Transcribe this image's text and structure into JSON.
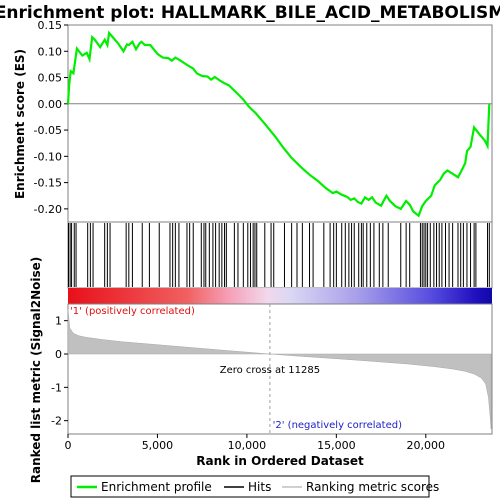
{
  "chart_data": {
    "type": "line",
    "title": "Enrichment plot: HALLMARK_BILE_ACID_METABOLISM",
    "xlabel": "Rank in Ordered Dataset",
    "ylabel_top": "Enrichment score (ES)",
    "ylabel_bottom": "Ranked list metric (Signal2Noise)",
    "xlim": [
      0,
      23700
    ],
    "x_ticks": [
      0,
      5000,
      10000,
      15000,
      20000
    ],
    "x_tick_labels": [
      "0",
      "5,000",
      "10,000",
      "15,000",
      "20,000"
    ],
    "es_ylim": [
      -0.225,
      0.15
    ],
    "es_ticks": [
      0.15,
      0.1,
      0.05,
      0.0,
      -0.05,
      -0.1,
      -0.15,
      -0.2
    ],
    "es_tick_labels": [
      "0.15",
      "0.10",
      "0.05",
      "0.00",
      "-0.05",
      "-0.10",
      "-0.15",
      "-0.20"
    ],
    "metric_ylim": [
      -2.4,
      1.5
    ],
    "metric_ticks": [
      1,
      0,
      -1,
      -2
    ],
    "metric_tick_labels": [
      "1",
      "0",
      "-1",
      "-2"
    ],
    "series": [
      {
        "name": "Enrichment profile",
        "color": "#00ee00",
        "x": [
          0,
          60,
          150,
          300,
          500,
          800,
          1050,
          1200,
          1350,
          1500,
          1800,
          2050,
          2200,
          2300,
          2500,
          2800,
          3100,
          3300,
          3400,
          3600,
          3800,
          4000,
          4100,
          4300,
          4600,
          5000,
          5300,
          5600,
          5800,
          6000,
          6300,
          6700,
          7000,
          7200,
          7500,
          7800,
          8000,
          8200,
          8500,
          8800,
          9000,
          9300,
          9600,
          9800,
          10100,
          10500,
          11000,
          11285,
          11600,
          12000,
          12500,
          13000,
          13500,
          14000,
          14400,
          14600,
          14800,
          15000,
          15300,
          15600,
          15800,
          16000,
          16200,
          16400,
          16600,
          16800,
          17000,
          17200,
          17500,
          17800,
          18000,
          18300,
          18600,
          18900,
          19100,
          19300,
          19600,
          19800,
          20000,
          20300,
          20500,
          20800,
          21000,
          21200,
          21500,
          21800,
          22000,
          22200,
          22300,
          22500,
          22700,
          23000,
          23300,
          23450,
          23550
        ],
        "y": [
          0.0,
          0.035,
          0.062,
          0.058,
          0.105,
          0.092,
          0.097,
          0.085,
          0.127,
          0.122,
          0.108,
          0.122,
          0.112,
          0.135,
          0.127,
          0.115,
          0.1,
          0.113,
          0.112,
          0.118,
          0.104,
          0.115,
          0.118,
          0.112,
          0.112,
          0.095,
          0.088,
          0.087,
          0.082,
          0.088,
          0.082,
          0.073,
          0.067,
          0.058,
          0.053,
          0.052,
          0.046,
          0.051,
          0.044,
          0.038,
          0.035,
          0.025,
          0.015,
          0.008,
          -0.005,
          -0.018,
          -0.038,
          -0.05,
          -0.063,
          -0.082,
          -0.103,
          -0.12,
          -0.135,
          -0.148,
          -0.16,
          -0.165,
          -0.17,
          -0.167,
          -0.173,
          -0.177,
          -0.183,
          -0.18,
          -0.187,
          -0.19,
          -0.178,
          -0.183,
          -0.178,
          -0.188,
          -0.194,
          -0.175,
          -0.185,
          -0.195,
          -0.2,
          -0.185,
          -0.192,
          -0.205,
          -0.213,
          -0.195,
          -0.185,
          -0.175,
          -0.155,
          -0.145,
          -0.133,
          -0.127,
          -0.133,
          -0.14,
          -0.127,
          -0.113,
          -0.09,
          -0.082,
          -0.045,
          -0.058,
          -0.07,
          -0.08,
          0.0
        ]
      }
    ],
    "hits_label": "Hits",
    "ranking_label": "Ranking metric scores",
    "hits": [
      30,
      120,
      200,
      350,
      450,
      1100,
      1250,
      1400,
      2050,
      2200,
      2350,
      3250,
      3400,
      3600,
      4150,
      4550,
      5100,
      5700,
      5850,
      6000,
      6200,
      6650,
      6800,
      7000,
      7450,
      7600,
      7700,
      7900,
      8100,
      8250,
      8450,
      8600,
      8750,
      8850,
      9300,
      9500,
      9800,
      10050,
      10200,
      10350,
      10450,
      10550,
      11000,
      11350,
      11500,
      12100,
      12500,
      12800,
      13100,
      13500,
      13700,
      14300,
      14650,
      14850,
      15000,
      15300,
      15500,
      15700,
      15850,
      16000,
      16250,
      16400,
      16500,
      16700,
      16900,
      17100,
      17400,
      17600,
      17900,
      18600,
      18900,
      19100,
      19700,
      19800,
      19900,
      20000,
      20100,
      20250,
      20450,
      20600,
      20750,
      20900,
      21100,
      21300,
      21500,
      21800,
      21950,
      22100,
      22300,
      22500,
      22700,
      22800,
      23450,
      23550
    ],
    "metric_curve": {
      "x": [
        0,
        100,
        300,
        600,
        1000,
        2000,
        3000,
        5000,
        7000,
        9000,
        11285,
        13000,
        15000,
        17000,
        19000,
        20500,
        21500,
        22200,
        22700,
        23100,
        23350,
        23500,
        23600,
        23650
      ],
      "y": [
        1.35,
        0.78,
        0.62,
        0.55,
        0.5,
        0.43,
        0.37,
        0.28,
        0.19,
        0.1,
        0.0,
        -0.07,
        -0.14,
        -0.22,
        -0.3,
        -0.38,
        -0.45,
        -0.52,
        -0.6,
        -0.72,
        -0.9,
        -1.3,
        -1.9,
        -2.25
      ]
    },
    "zero_cross_rank": 11285,
    "zero_cross_label": "Zero cross at 11285",
    "pos_label": "'1' (positively correlated)",
    "neg_label": "'2' (negatively correlated)",
    "colors": {
      "profile": "#00ee00",
      "hits": "#000000",
      "metric_fill": "#c0c0c0",
      "positive": "#e01010",
      "negative": "#2020c8",
      "frame": "#808080"
    },
    "legend_position": "bottom",
    "grid": false
  }
}
